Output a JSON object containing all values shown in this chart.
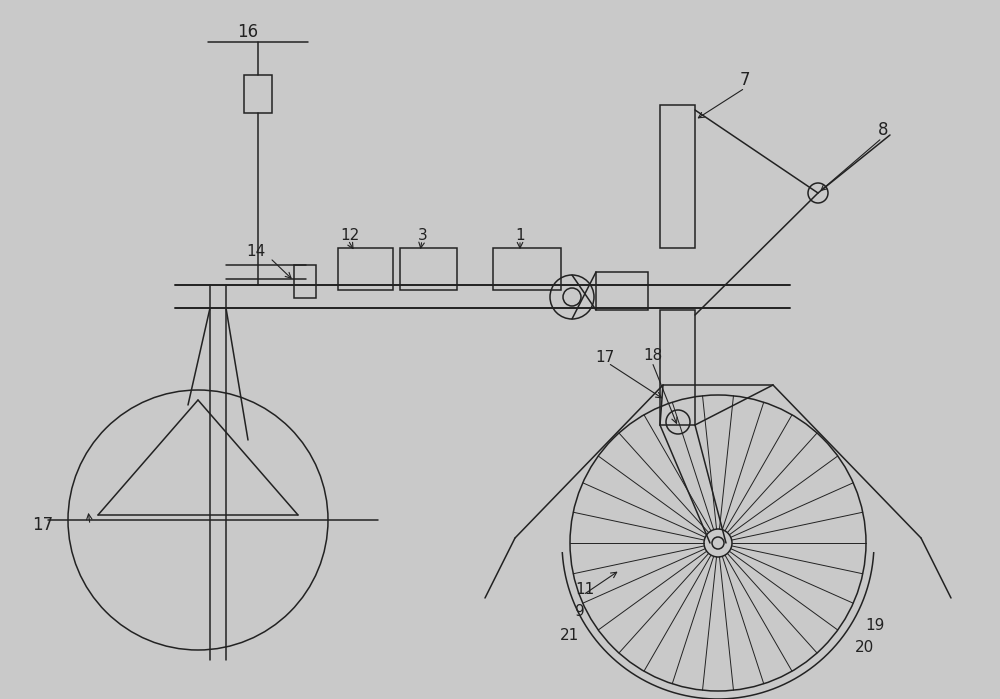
{
  "bg_color": "#c9c9c9",
  "line_color": "#222222",
  "lw": 1.1,
  "figw": 10.0,
  "figh": 6.99
}
